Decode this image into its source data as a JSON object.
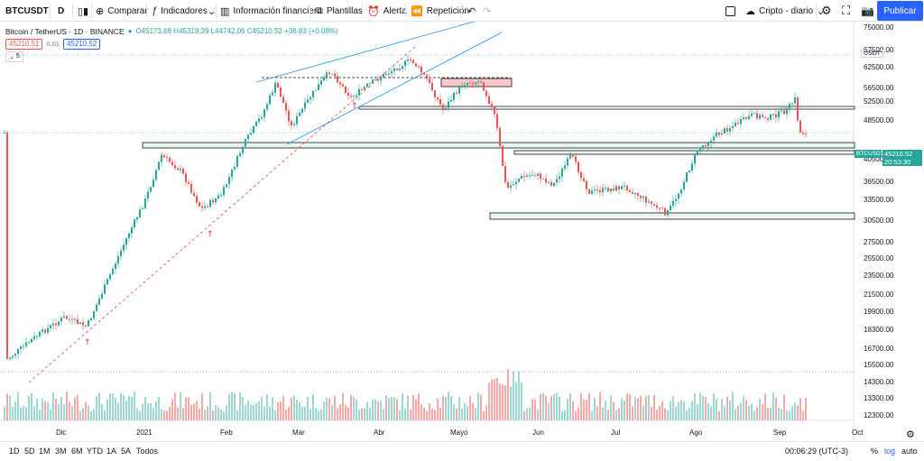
{
  "toolbar": {
    "symbol": "BTCUSDT",
    "interval": "D",
    "compare": "Comparar",
    "indicators": "Indicadores",
    "financials": "Información financiera",
    "templates": "Plantillas",
    "alert": "Alerta",
    "replay": "Repetición",
    "layout": "Cripto - diario",
    "publish": "Publicar"
  },
  "legend": {
    "title": "Bitcoin / TetherUS · 1D · BINANCE",
    "ohlc": "O45173.68 H45319.39 L44742.06 C45210.52 +36.83 (+0.08%)",
    "bid": "45210.51",
    "spread": "0.01",
    "ask": "45210.52",
    "indicator_count": "5"
  },
  "price_axis": {
    "currency": "USDT",
    "labels": [
      "75000.00",
      "67500.00",
      "62500.00",
      "56500.00",
      "52500.00",
      "48500.00",
      "40500.00",
      "36500.00",
      "33500.00",
      "30500.00",
      "27500.00",
      "25500.00",
      "23500.00",
      "21500.00",
      "19900.00",
      "18300.00",
      "16700.00",
      "15500.00",
      "14300.00",
      "13300.00",
      "12300.00"
    ],
    "last_symbol": "BTCUSDT",
    "last_price": "45210.52",
    "countdown": "20:53:30"
  },
  "time_axis": {
    "labels": [
      "Dic",
      "2021",
      "Feb",
      "Mar",
      "Abr",
      "Mayo",
      "Jun",
      "Jul",
      "Ago",
      "Sep",
      "Oct"
    ]
  },
  "bottom": {
    "ranges": [
      "1D",
      "5D",
      "1M",
      "3M",
      "6M",
      "YTD",
      "1A",
      "5A",
      "Todos"
    ],
    "clock": "00:06:29 (UTC-3)",
    "percent": "%",
    "log": "log",
    "auto": "auto"
  },
  "colors": {
    "up": "#26a69a",
    "down": "#ef5350",
    "accent": "#2962ff",
    "trend": "#2196f3",
    "zone": "#e8f5e9"
  }
}
